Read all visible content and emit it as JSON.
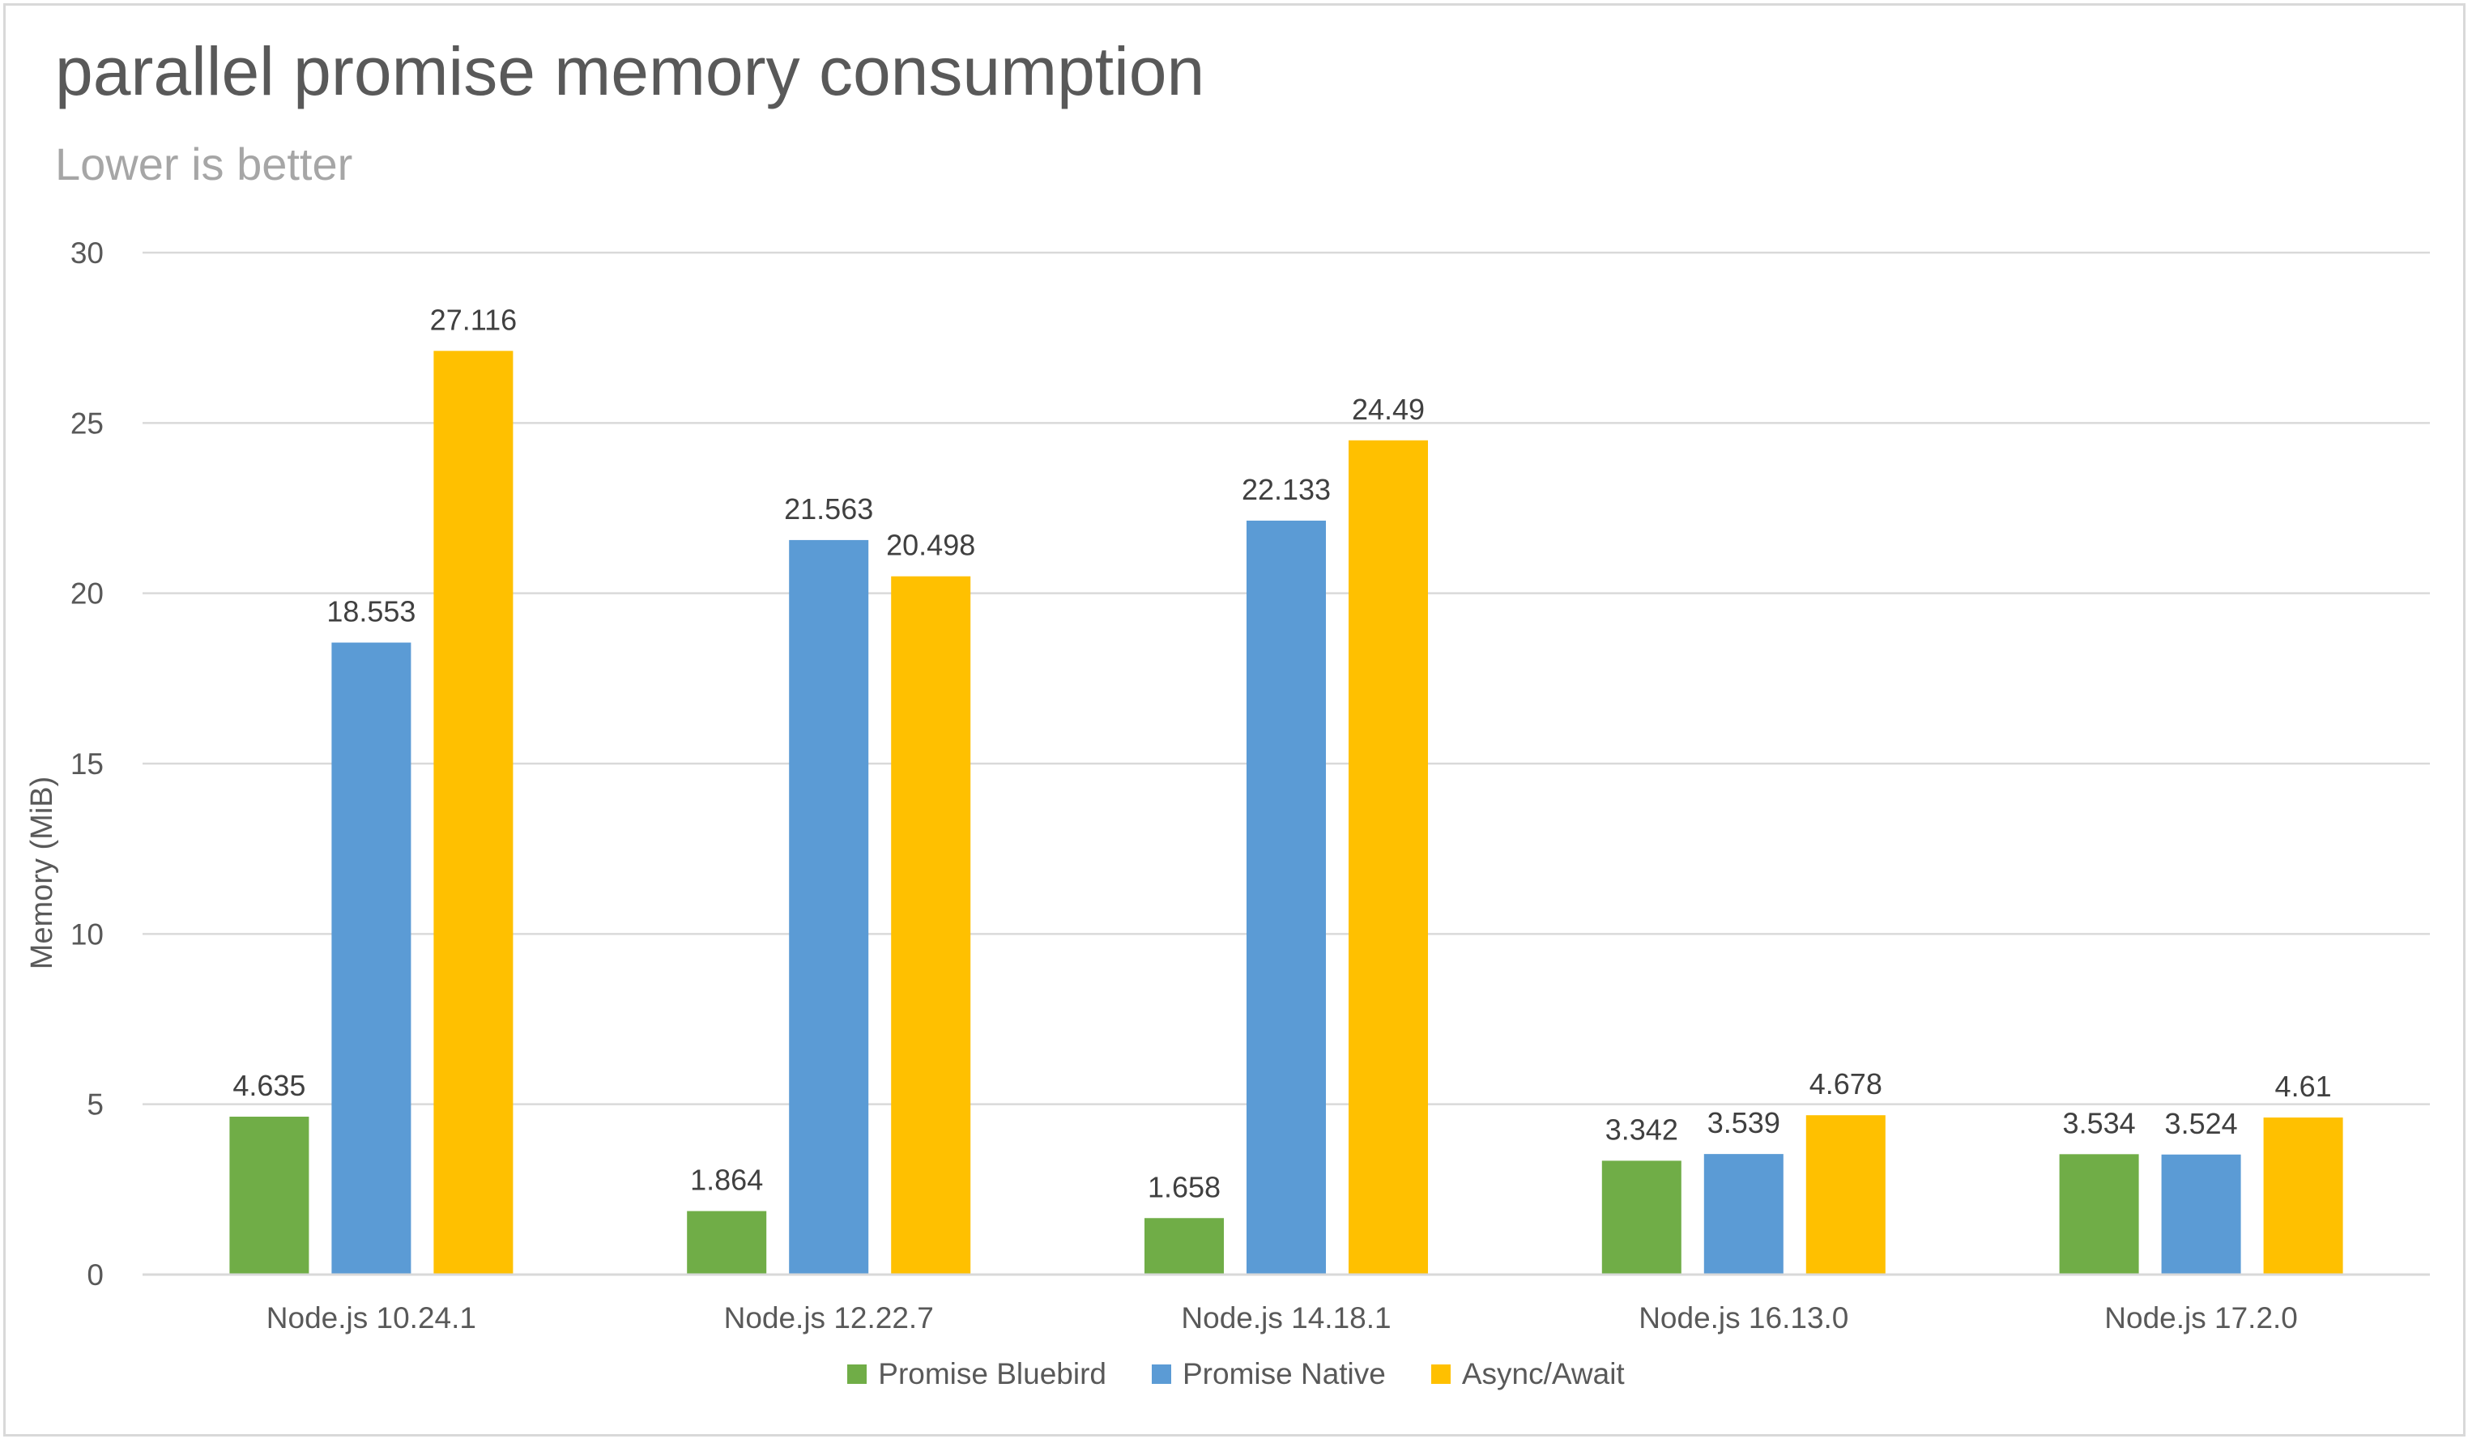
{
  "chart_data": {
    "type": "bar",
    "title": "parallel promise memory consumption",
    "subtitle": "Lower is better",
    "xlabel": "",
    "ylabel": "Memory (MiB)",
    "ylim": [
      0,
      30
    ],
    "yticks": [
      0,
      5,
      10,
      15,
      20,
      25,
      30
    ],
    "grid": true,
    "legend_position": "bottom",
    "categories": [
      "Node.js 10.24.1",
      "Node.js 12.22.7",
      "Node.js 14.18.1",
      "Node.js 16.13.0",
      "Node.js 17.2.0"
    ],
    "series": [
      {
        "name": "Promise Bluebird",
        "color": "#70ad47",
        "values": [
          4.635,
          1.864,
          1.658,
          3.342,
          3.534
        ]
      },
      {
        "name": "Promise Native",
        "color": "#5b9bd5",
        "values": [
          18.553,
          21.563,
          22.133,
          3.539,
          3.524
        ]
      },
      {
        "name": "Async/Await",
        "color": "#ffc000",
        "values": [
          27.116,
          20.498,
          24.49,
          4.678,
          4.61
        ]
      }
    ]
  }
}
